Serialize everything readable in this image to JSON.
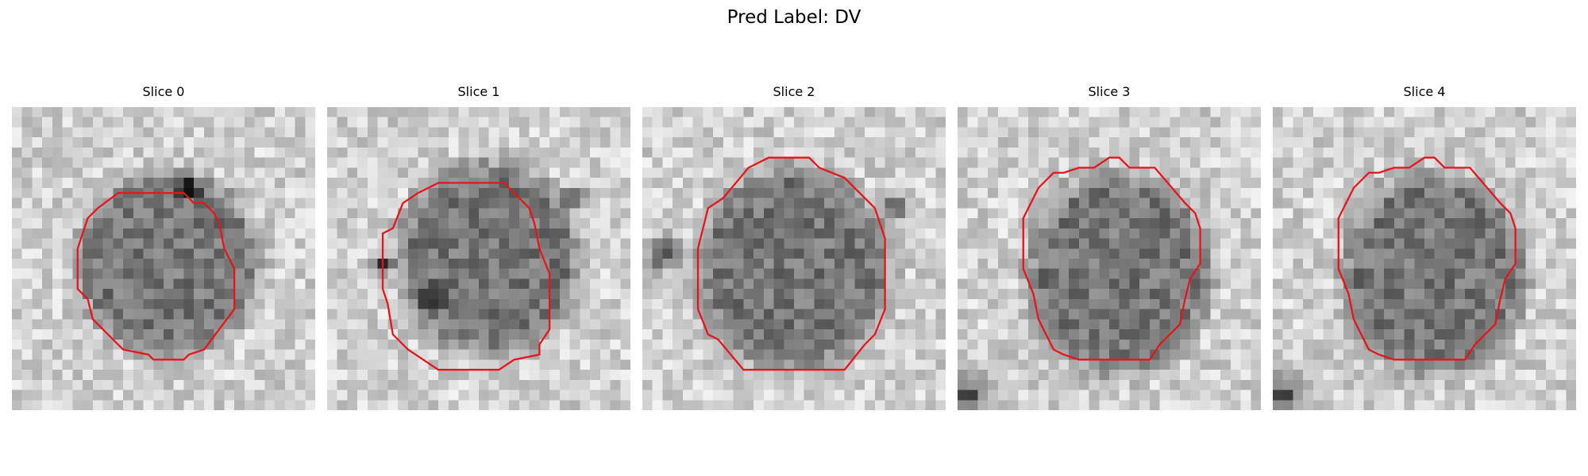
{
  "figure": {
    "title": "Pred Label: DV"
  },
  "panels": [
    {
      "label": "Slice 0"
    },
    {
      "label": "Slice 1"
    },
    {
      "label": "Slice 2"
    },
    {
      "label": "Slice 3"
    },
    {
      "label": "Slice 4"
    }
  ],
  "colors": {
    "contour": "#e8141c",
    "background": "#ffffff"
  }
}
